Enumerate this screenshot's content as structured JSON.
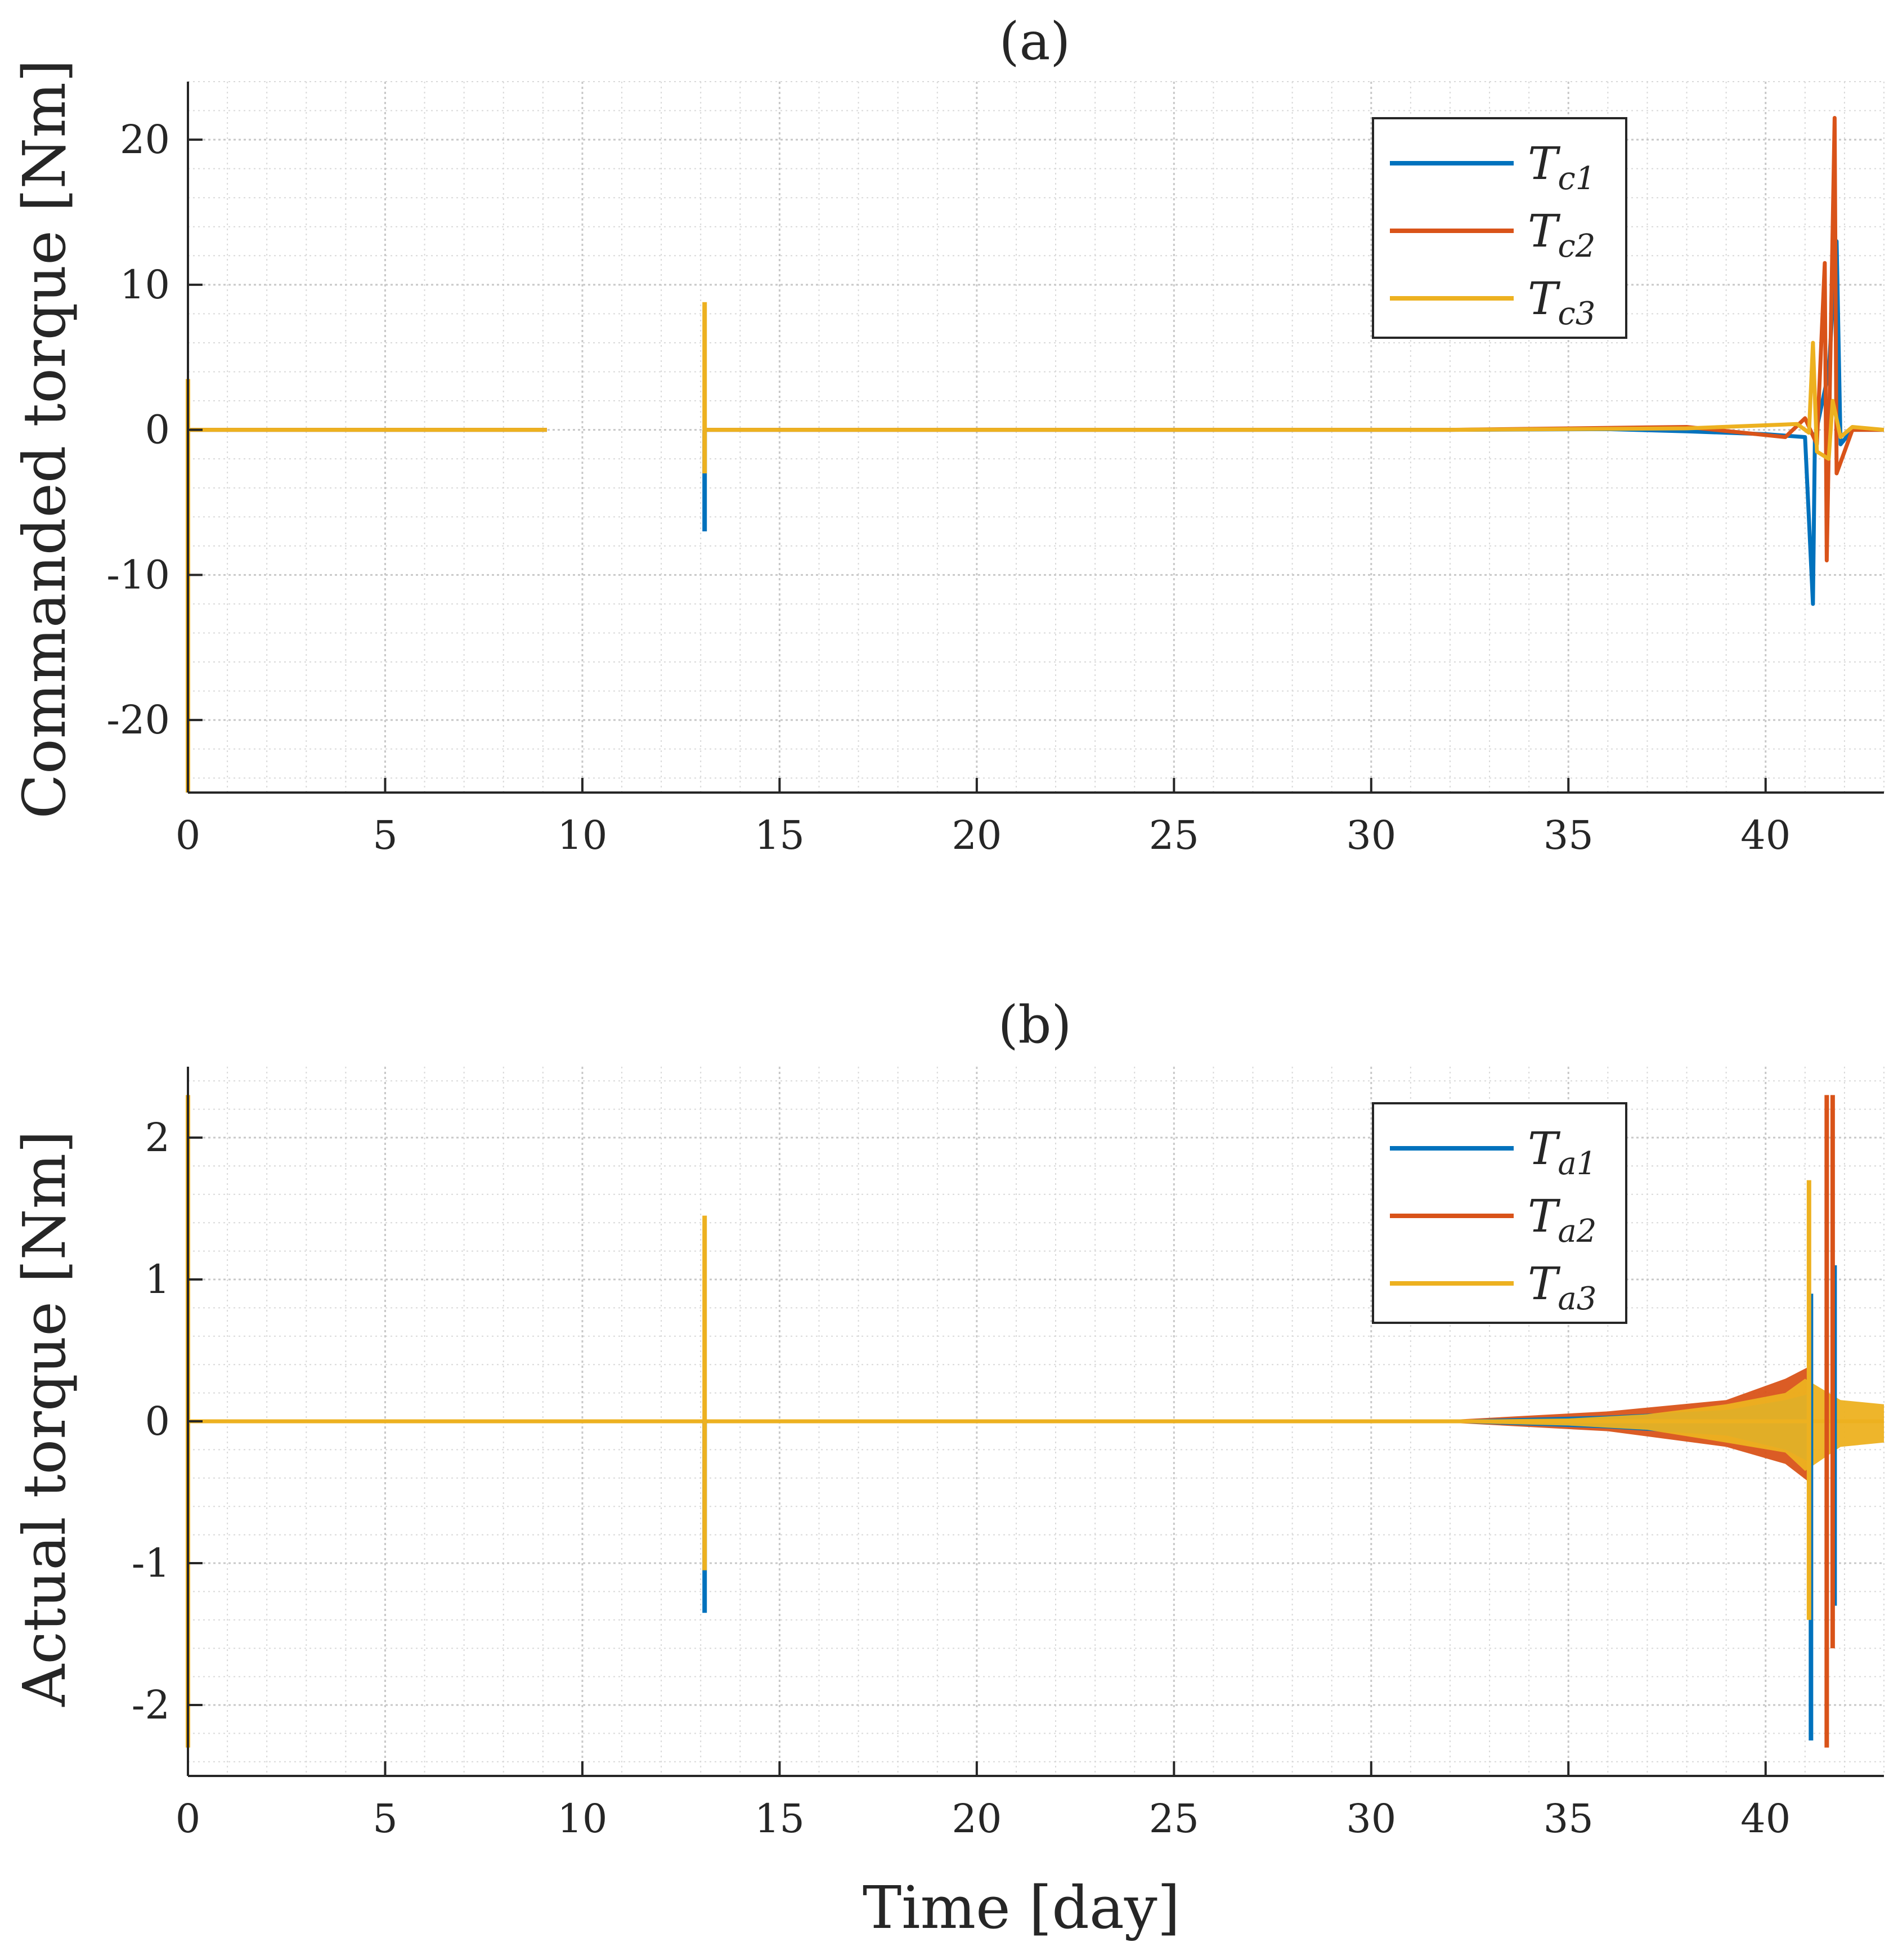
{
  "figure": {
    "xlabel": "Time [day]"
  },
  "colors": {
    "series1": "#0072BD",
    "series2": "#D95319",
    "series3": "#EDB120",
    "grid": "#d9d9d9",
    "axis": "#262626"
  },
  "chart_data": [
    {
      "type": "line",
      "title": "(a)",
      "ylabel": "Commanded torque [Nm]",
      "xlabel": "",
      "xlim": [
        0,
        43
      ],
      "ylim": [
        -25,
        24
      ],
      "xticks": [
        0,
        5,
        10,
        15,
        20,
        25,
        30,
        35,
        40
      ],
      "xtick_labels": [
        "0",
        "5",
        "10",
        "15",
        "20",
        "25",
        "30",
        "35",
        "40"
      ],
      "yticks": [
        20,
        10,
        0,
        -10,
        -20
      ],
      "ytick_labels": [
        "20",
        "10",
        "0",
        "-10",
        "-20"
      ],
      "grid": "on (major and minor)",
      "legend": {
        "placement": "top-right",
        "entries": [
          {
            "base": "T",
            "sub": "c1"
          },
          {
            "base": "T",
            "sub": "c2"
          },
          {
            "base": "T",
            "sub": "c3"
          }
        ]
      },
      "series": [
        {
          "name": "Tc1",
          "segments": [
            [
              [
                0,
                0
              ],
              [
                9.1,
                0
              ]
            ],
            [
              [
                13.1,
                0
              ],
              [
                32,
                0
              ],
              [
                36,
                0.05
              ],
              [
                38,
                -0.1
              ],
              [
                40,
                -0.3
              ],
              [
                41.0,
                -0.5
              ],
              [
                41.2,
                -12
              ],
              [
                41.25,
                -0.5
              ],
              [
                41.6,
                4
              ],
              [
                41.8,
                13
              ],
              [
                41.9,
                -1
              ],
              [
                42.2,
                0
              ],
              [
                43,
                0
              ]
            ]
          ],
          "spikes": [
            {
              "x": 13.1,
              "min": -7,
              "max": 0
            }
          ]
        },
        {
          "name": "Tc2",
          "segments": [
            [
              [
                0,
                0
              ],
              [
                9.1,
                0
              ]
            ],
            [
              [
                13.1,
                0
              ],
              [
                32,
                0
              ],
              [
                38,
                0.2
              ],
              [
                40.5,
                -0.5
              ],
              [
                41.0,
                0.8
              ],
              [
                41.3,
                -1
              ],
              [
                41.5,
                11.5
              ],
              [
                41.55,
                -9
              ],
              [
                41.75,
                21.5
              ],
              [
                41.8,
                -3
              ],
              [
                42.2,
                0
              ],
              [
                43,
                0
              ]
            ]
          ],
          "spikes": []
        },
        {
          "name": "Tc3",
          "segments": [
            [
              [
                0,
                0
              ],
              [
                9.1,
                0
              ]
            ],
            [
              [
                13.1,
                0
              ],
              [
                32,
                0
              ],
              [
                38,
                0.1
              ],
              [
                40.8,
                0.4
              ],
              [
                41.1,
                -0.2
              ],
              [
                41.2,
                6
              ],
              [
                41.3,
                -1.5
              ],
              [
                41.6,
                -2
              ],
              [
                41.7,
                2
              ],
              [
                41.9,
                -0.5
              ],
              [
                42.2,
                0.2
              ],
              [
                43,
                0
              ]
            ]
          ],
          "spikes": [
            {
              "x": 0,
              "min": -25,
              "max": 3.5
            },
            {
              "x": 13.1,
              "min": -3,
              "max": 8.8
            }
          ]
        }
      ]
    },
    {
      "type": "line",
      "title": "(b)",
      "ylabel": "Actual torque [Nm]",
      "xlabel": "Time [day]",
      "xlim": [
        0,
        43
      ],
      "ylim": [
        -2.5,
        2.5
      ],
      "xticks": [
        0,
        5,
        10,
        15,
        20,
        25,
        30,
        35,
        40
      ],
      "xtick_labels": [
        "0",
        "5",
        "10",
        "15",
        "20",
        "25",
        "30",
        "35",
        "40"
      ],
      "yticks": [
        2,
        1,
        0,
        -1,
        -2
      ],
      "ytick_labels": [
        "2",
        "1",
        "0",
        "-1",
        "-2"
      ],
      "grid": "on (major and minor)",
      "legend": {
        "placement": "top-right",
        "entries": [
          {
            "base": "T",
            "sub": "a1"
          },
          {
            "base": "T",
            "sub": "a2"
          },
          {
            "base": "T",
            "sub": "a3"
          }
        ]
      },
      "series": [
        {
          "name": "Ta1",
          "segments": [
            [
              [
                0,
                0
              ],
              [
                43,
                0
              ]
            ]
          ],
          "spikes": [
            {
              "x": 13.1,
              "min": -1.35,
              "max": 0
            },
            {
              "x": 41.15,
              "min": -2.25,
              "max": 0.9
            },
            {
              "x": 41.75,
              "min": -1.3,
              "max": 1.1
            }
          ]
        },
        {
          "name": "Ta2",
          "segments": [
            [
              [
                0,
                0
              ],
              [
                43,
                0
              ]
            ]
          ],
          "spikes": [
            {
              "x": 41.55,
              "min": -2.3,
              "max": 2.3
            },
            {
              "x": 41.7,
              "min": -1.6,
              "max": 2.3
            }
          ]
        },
        {
          "name": "Ta3",
          "segments": [
            [
              [
                0,
                0
              ],
              [
                43,
                0
              ]
            ]
          ],
          "spikes": [
            {
              "x": 0,
              "min": -2.3,
              "max": 2.3
            },
            {
              "x": 13.1,
              "min": -1.05,
              "max": 1.45
            },
            {
              "x": 41.1,
              "min": -1.4,
              "max": 1.7
            }
          ]
        }
      ],
      "envelopes": [
        {
          "series": "Ta2",
          "upper": [
            [
              32,
              0.01
            ],
            [
              36,
              0.07
            ],
            [
              39,
              0.15
            ],
            [
              40.5,
              0.3
            ],
            [
              41.2,
              0.4
            ]
          ],
          "lower": [
            [
              32,
              -0.01
            ],
            [
              36,
              -0.07
            ],
            [
              39,
              -0.18
            ],
            [
              40.5,
              -0.3
            ],
            [
              41.2,
              -0.45
            ]
          ]
        },
        {
          "series": "Ta1",
          "upper": [
            [
              32,
              0.01
            ],
            [
              36,
              0.04
            ],
            [
              39,
              0.08
            ],
            [
              40.5,
              0.15
            ],
            [
              41.2,
              0.2
            ]
          ],
          "lower": [
            [
              32,
              -0.01
            ],
            [
              36,
              -0.05
            ],
            [
              39,
              -0.1
            ],
            [
              40.5,
              -0.2
            ],
            [
              41.2,
              -0.3
            ]
          ]
        },
        {
          "series": "Ta3",
          "upper": [
            [
              32,
              0.01
            ],
            [
              35,
              0.02
            ],
            [
              37,
              0.05
            ],
            [
              39,
              0.12
            ],
            [
              40.5,
              0.2
            ],
            [
              41.0,
              0.3
            ],
            [
              41.9,
              0.15
            ],
            [
              43,
              0.12
            ]
          ],
          "lower": [
            [
              32,
              -0.01
            ],
            [
              35,
              -0.03
            ],
            [
              37,
              -0.06
            ],
            [
              39,
              -0.15
            ],
            [
              40.5,
              -0.22
            ],
            [
              41.0,
              -0.35
            ],
            [
              41.9,
              -0.18
            ],
            [
              43,
              -0.15
            ]
          ]
        }
      ]
    }
  ]
}
